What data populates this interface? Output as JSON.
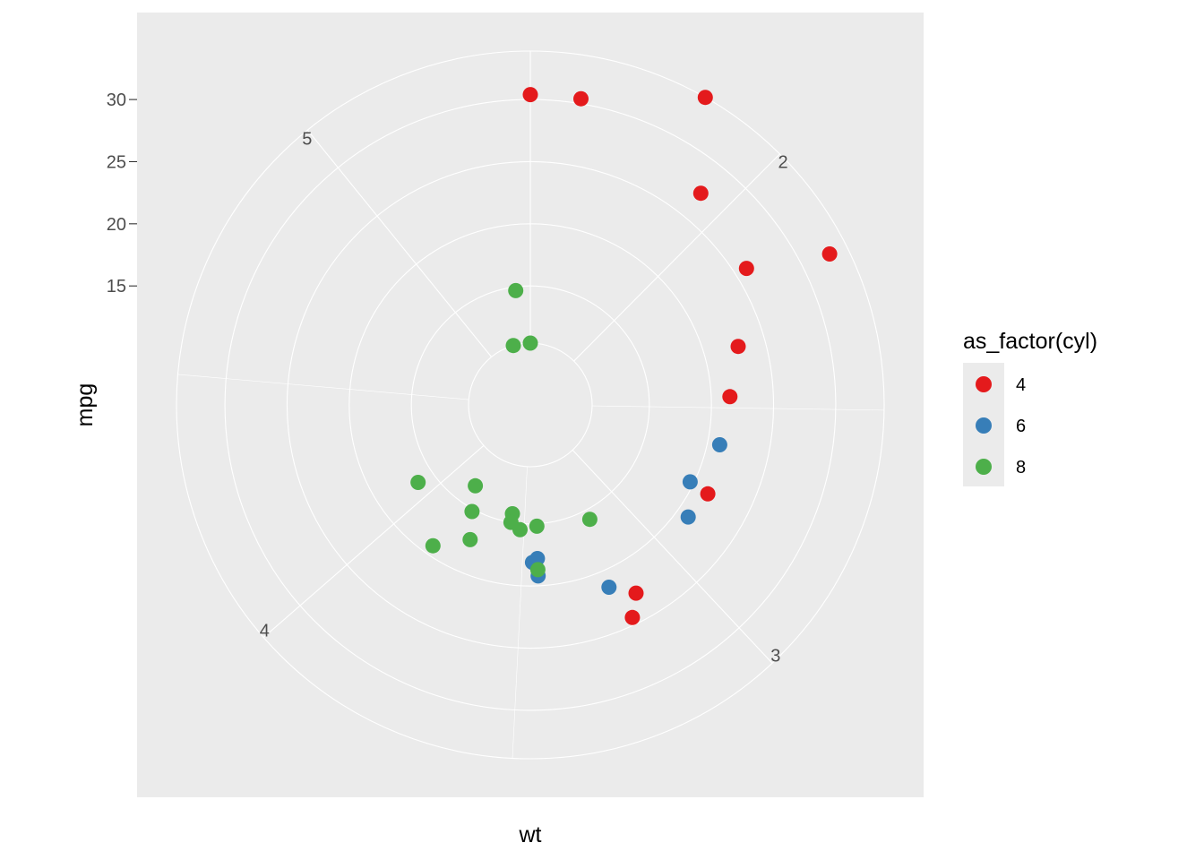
{
  "chart_data": {
    "type": "scatter",
    "coord": "polar",
    "theta_variable": "wt",
    "r_variable": "mpg",
    "xlabel": "wt",
    "ylabel": "mpg",
    "theta_ticks": [
      2,
      3,
      4,
      5
    ],
    "r_ticks": [
      15,
      20,
      25,
      30
    ],
    "theta_range": [
      1.513,
      5.424
    ],
    "r_range": [
      10.4,
      33.9
    ],
    "panel_background": "#ebebeb",
    "grid": true,
    "legend": {
      "title": "as_factor(cyl)",
      "position": "right",
      "entries": [
        {
          "label": "4",
          "color": "#e41a1c"
        },
        {
          "label": "6",
          "color": "#377eb8"
        },
        {
          "label": "8",
          "color": "#4daf4a"
        }
      ]
    },
    "series": [
      {
        "name": "4",
        "color": "#e41a1c",
        "points": [
          {
            "wt": 2.32,
            "mpg": 22.8
          },
          {
            "wt": 3.19,
            "mpg": 24.4
          },
          {
            "wt": 3.15,
            "mpg": 22.8
          },
          {
            "wt": 2.2,
            "mpg": 32.4
          },
          {
            "wt": 1.615,
            "mpg": 30.4
          },
          {
            "wt": 1.835,
            "mpg": 33.9
          },
          {
            "wt": 2.465,
            "mpg": 21.5
          },
          {
            "wt": 1.935,
            "mpg": 27.3
          },
          {
            "wt": 2.14,
            "mpg": 26.0
          },
          {
            "wt": 1.513,
            "mpg": 30.4
          },
          {
            "wt": 2.78,
            "mpg": 21.4
          }
        ]
      },
      {
        "name": "6",
        "color": "#377eb8",
        "points": [
          {
            "wt": 2.62,
            "mpg": 21.0
          },
          {
            "wt": 2.875,
            "mpg": 21.0
          },
          {
            "wt": 3.215,
            "mpg": 21.4
          },
          {
            "wt": 3.46,
            "mpg": 18.1
          },
          {
            "wt": 3.44,
            "mpg": 19.2
          },
          {
            "wt": 3.44,
            "mpg": 17.8
          },
          {
            "wt": 2.77,
            "mpg": 19.7
          }
        ]
      },
      {
        "name": "8",
        "color": "#4daf4a",
        "points": [
          {
            "wt": 3.44,
            "mpg": 18.7
          },
          {
            "wt": 3.57,
            "mpg": 14.3
          },
          {
            "wt": 4.07,
            "mpg": 16.4
          },
          {
            "wt": 3.73,
            "mpg": 17.3
          },
          {
            "wt": 3.78,
            "mpg": 15.2
          },
          {
            "wt": 5.25,
            "mpg": 10.4
          },
          {
            "wt": 5.424,
            "mpg": 10.4
          },
          {
            "wt": 5.345,
            "mpg": 14.7
          },
          {
            "wt": 3.52,
            "mpg": 15.5
          },
          {
            "wt": 3.435,
            "mpg": 15.2
          },
          {
            "wt": 3.84,
            "mpg": 13.3
          },
          {
            "wt": 3.845,
            "mpg": 19.2
          },
          {
            "wt": 3.17,
            "mpg": 15.8
          },
          {
            "wt": 3.57,
            "mpg": 15.0
          }
        ]
      }
    ]
  }
}
